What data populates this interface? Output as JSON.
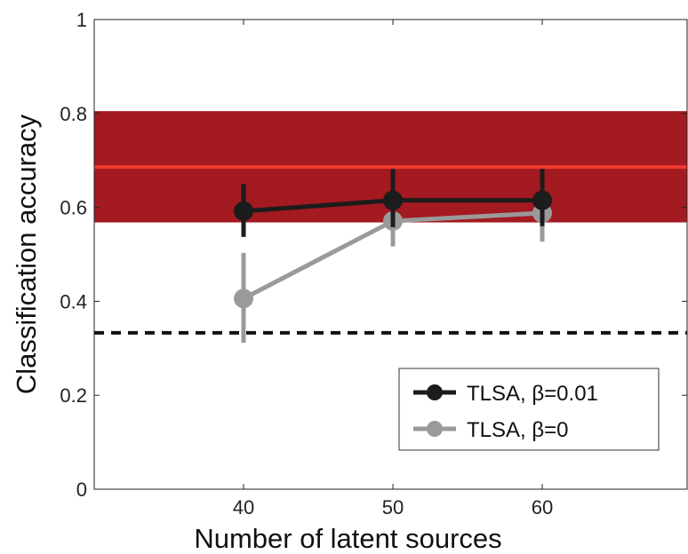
{
  "chart_data": {
    "type": "line",
    "xlabel": "Number of latent sources",
    "ylabel": "Classification accuracy",
    "xlim": [
      30,
      69.7
    ],
    "ylim": [
      0,
      1
    ],
    "xticks": [
      40,
      50,
      60
    ],
    "yticks": [
      0,
      0.2,
      0.4,
      0.6,
      0.8,
      1
    ],
    "ytick_labels": [
      "0",
      "0.2",
      "0.4",
      "0.6",
      "0.8",
      "1"
    ],
    "grid": false,
    "legend_position": "bottom-right",
    "band": {
      "low": 0.568,
      "high": 0.805,
      "center": 0.686,
      "color": "#a31a20",
      "line_color": "#f23a30"
    },
    "chance_level": {
      "y": 0.333,
      "style": "dashed",
      "color": "#111111"
    },
    "series": [
      {
        "name": "TLSA, β=0.01",
        "color": "#1c1c1c",
        "x": [
          40,
          50,
          60
        ],
        "y": [
          0.592,
          0.615,
          0.615
        ],
        "err_low": [
          0.537,
          0.558,
          0.56
        ],
        "err_high": [
          0.65,
          0.682,
          0.682
        ]
      },
      {
        "name": "TLSA, β=0",
        "color": "#9a9a9a",
        "x": [
          40,
          50,
          60
        ],
        "y": [
          0.406,
          0.571,
          0.588
        ],
        "err_low": [
          0.312,
          0.517,
          0.527
        ],
        "err_high": [
          0.503,
          0.618,
          0.648
        ]
      }
    ]
  }
}
